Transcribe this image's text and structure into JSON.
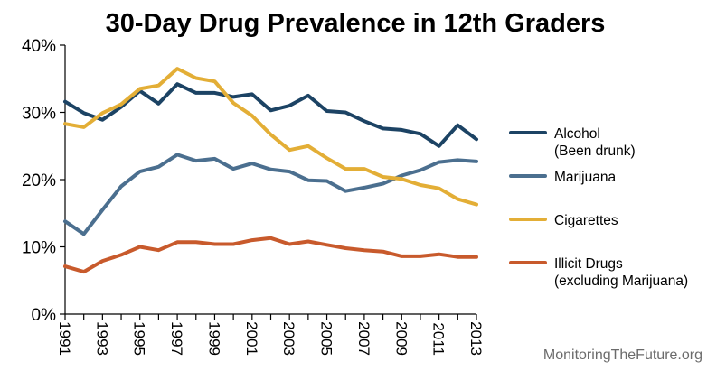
{
  "chart_data": {
    "type": "line",
    "title": "30-Day Drug Prevalence in 12th Graders",
    "xlabel": "",
    "ylabel": "",
    "x": [
      1991,
      1992,
      1993,
      1994,
      1995,
      1996,
      1997,
      1998,
      1999,
      2000,
      2001,
      2002,
      2003,
      2004,
      2005,
      2006,
      2007,
      2008,
      2009,
      2010,
      2011,
      2012,
      2013
    ],
    "x_tick_labels": [
      "1991",
      "1993",
      "1995",
      "1997",
      "1999",
      "2001",
      "2003",
      "2005",
      "2007",
      "2009",
      "2011",
      "2013"
    ],
    "ylim": [
      0,
      40
    ],
    "y_tick_labels": [
      "0%",
      "10%",
      "20%",
      "30%",
      "40%"
    ],
    "grid": false,
    "legend_position": "right",
    "series": [
      {
        "name": "Alcohol",
        "name_line2": "(Been drunk)",
        "color": "#1c4364",
        "values": [
          31.6,
          29.9,
          28.9,
          30.8,
          33.2,
          31.3,
          34.2,
          32.9,
          32.9,
          32.3,
          32.7,
          30.3,
          31.0,
          32.5,
          30.2,
          30.0,
          28.7,
          27.6,
          27.4,
          26.8,
          25.0,
          28.1,
          26.0
        ]
      },
      {
        "name": "Marijuana",
        "name_line2": "",
        "color": "#4b6f8f",
        "values": [
          13.8,
          11.9,
          15.5,
          19.0,
          21.2,
          21.9,
          23.7,
          22.8,
          23.1,
          21.6,
          22.4,
          21.5,
          21.2,
          19.9,
          19.8,
          18.3,
          18.8,
          19.4,
          20.6,
          21.4,
          22.6,
          22.9,
          22.7
        ]
      },
      {
        "name": "Cigarettes",
        "name_line2": "",
        "color": "#e3ae36",
        "values": [
          28.3,
          27.8,
          29.9,
          31.2,
          33.5,
          34.0,
          36.5,
          35.1,
          34.6,
          31.4,
          29.5,
          26.7,
          24.4,
          25.0,
          23.2,
          21.6,
          21.6,
          20.4,
          20.1,
          19.2,
          18.7,
          17.1,
          16.3
        ]
      },
      {
        "name": "Illicit Drugs",
        "name_line2": "(excluding Marijuana)",
        "color": "#c85a2c",
        "values": [
          7.1,
          6.3,
          7.9,
          8.8,
          10.0,
          9.5,
          10.7,
          10.7,
          10.4,
          10.4,
          11.0,
          11.3,
          10.4,
          10.8,
          10.3,
          9.8,
          9.5,
          9.3,
          8.6,
          8.6,
          8.9,
          8.5,
          8.5
        ]
      }
    ],
    "annotations": [
      "MonitoringTheFuture.org"
    ]
  }
}
